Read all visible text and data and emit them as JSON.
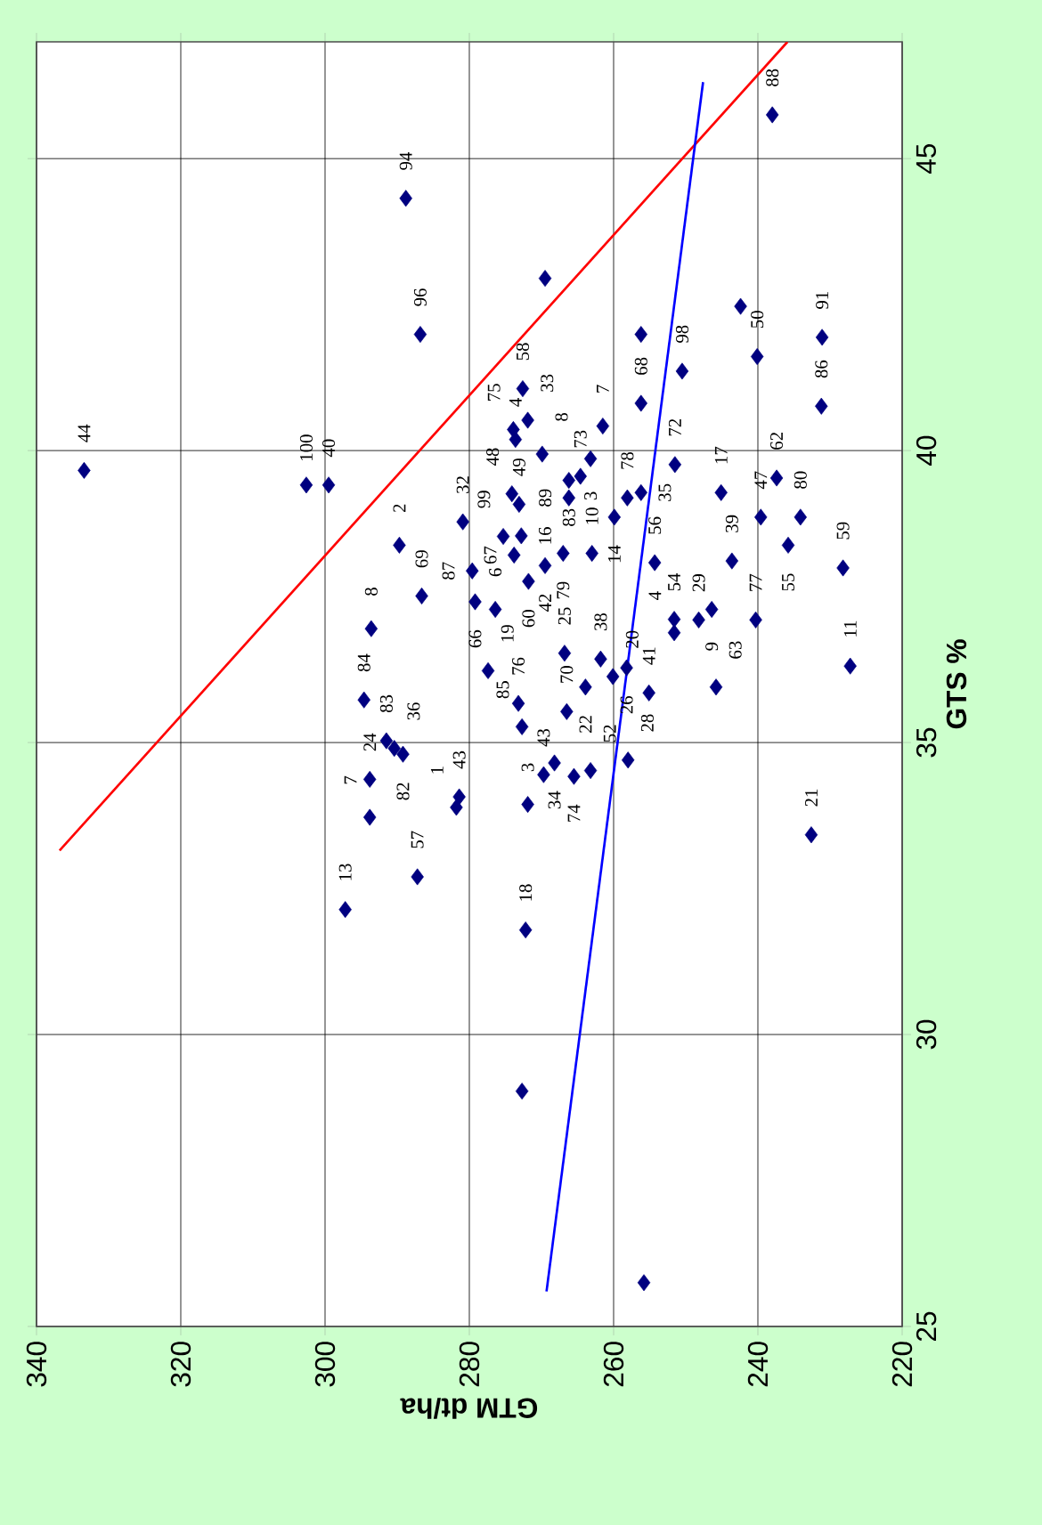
{
  "chart_data": {
    "type": "scatter",
    "xlabel": "GTM dt/ha",
    "ylabel": "GTS %",
    "xlim": [
      340,
      220
    ],
    "xticks": [
      340,
      320,
      300,
      280,
      260,
      240,
      220
    ],
    "ylim": [
      25,
      47
    ],
    "yticks": [
      25,
      30,
      35,
      40,
      45
    ],
    "grid": true,
    "series": [
      {
        "color": "#000080",
        "marker": "diamond",
        "x": [
          333.4,
          288.8,
          238.0,
          269.5,
          286.8,
          231.1,
          242.4,
          240.1,
          250.5,
          256.2,
          256.2,
          231.2,
          272.6,
          271.9,
          273.9,
          273.6,
          269.9,
          261.5,
          263.2,
          264.6,
          266.2,
          266.2,
          274.1,
          273.1,
          275.3,
          272.8,
          273.8,
          271.8,
          269.5,
          267.0,
          263.0,
          254.3,
          243.6,
          235.8,
          228.2,
          259.9,
          258.1,
          256.2,
          251.5,
          245.1,
          237.4,
          239.6,
          234.1,
          280.9,
          289.7,
          279.6,
          279.2,
          276.4,
          286.6,
          293.6,
          294.6,
          291.5,
          290.4,
          289.2,
          293.8,
          293.8,
          281.4,
          281.8,
          287.2,
          297.2,
          272.2,
          272.7,
          255.8,
          232.6,
          277.4,
          273.2,
          272.7,
          266.8,
          266.5,
          263.9,
          261.8,
          260.1,
          258.2,
          255.1,
          251.6,
          251.6,
          248.2,
          246.4,
          240.3,
          245.8,
          227.2,
          269.7,
          268.2,
          265.5,
          263.2,
          258.0,
          271.9,
          302.6,
          299.5
        ],
        "values": [
          39.66,
          44.32,
          45.75,
          42.95,
          41.99,
          41.94,
          42.47,
          41.61,
          41.36,
          41.99,
          40.81,
          40.76,
          41.06,
          40.52,
          40.36,
          40.19,
          39.94,
          40.42,
          39.86,
          39.56,
          39.49,
          39.19,
          39.26,
          39.08,
          38.53,
          38.54,
          38.21,
          37.76,
          38.03,
          38.24,
          38.24,
          38.08,
          38.11,
          38.38,
          37.99,
          38.86,
          39.19,
          39.28,
          39.76,
          39.28,
          39.53,
          38.86,
          38.86,
          38.78,
          38.38,
          37.94,
          37.41,
          37.28,
          37.51,
          36.95,
          35.73,
          35.03,
          34.9,
          34.8,
          34.37,
          33.72,
          34.07,
          33.89,
          32.7,
          32.14,
          31.79,
          29.03,
          25.75,
          33.42,
          36.23,
          35.67,
          35.27,
          36.53,
          35.53,
          35.95,
          36.43,
          36.13,
          36.28,
          35.85,
          37.11,
          36.88,
          37.1,
          37.28,
          37.1,
          35.95,
          36.31,
          34.45,
          34.65,
          34.42,
          34.52,
          34.7,
          33.94,
          39.41,
          39.41
        ]
      },
      {
        "type": "line",
        "color": "#ff0000",
        "marker": "none",
        "x": [
          336.8,
          235.9
        ],
        "values": [
          33.15,
          47
        ]
      },
      {
        "type": "line",
        "color": "#0000ff",
        "marker": "none",
        "x": [
          269.3,
          247.6
        ],
        "values": [
          25.6,
          46.31
        ]
      }
    ],
    "annotations": [
      {
        "text": "44",
        "x": 333.4,
        "y": 39.66
      },
      {
        "text": "94",
        "x": 288.8,
        "y": 44.32
      },
      {
        "text": "88",
        "x": 238.0,
        "y": 45.75
      },
      {
        "text": "96",
        "x": 286.8,
        "y": 41.99
      },
      {
        "text": "91",
        "x": 231.1,
        "y": 41.94
      },
      {
        "text": "50",
        "x": 240.1,
        "y": 41.61
      },
      {
        "text": "98",
        "x": 250.5,
        "y": 41.36
      },
      {
        "text": "68",
        "x": 256.2,
        "y": 40.81
      },
      {
        "text": "86",
        "x": 231.2,
        "y": 40.76
      },
      {
        "text": "58",
        "x": 272.6,
        "y": 41.06
      },
      {
        "text": "33",
        "x": 271.9,
        "y": 40.52
      },
      {
        "text": "75",
        "x": 273.9,
        "y": 40.36
      },
      {
        "text": "4",
        "x": 273.6,
        "y": 40.19
      },
      {
        "text": "8",
        "x": 269.9,
        "y": 39.94
      },
      {
        "text": "7",
        "x": 261.5,
        "y": 40.42
      },
      {
        "text": "3",
        "x": 263.2,
        "y": 39.86
      },
      {
        "text": "73",
        "x": 264.6,
        "y": 39.56
      },
      {
        "text": "83",
        "x": 266.2,
        "y": 39.49
      },
      {
        "text": "89",
        "x": 266.2,
        "y": 39.19
      },
      {
        "text": "48",
        "x": 274.1,
        "y": 39.26
      },
      {
        "text": "49",
        "x": 273.1,
        "y": 39.08
      },
      {
        "text": "99",
        "x": 275.3,
        "y": 38.53
      },
      {
        "text": "16",
        "x": 272.8,
        "y": 38.54
      },
      {
        "text": "67",
        "x": 273.8,
        "y": 38.21
      },
      {
        "text": "60",
        "x": 271.8,
        "y": 37.76
      },
      {
        "text": "42",
        "x": 269.5,
        "y": 38.03
      },
      {
        "text": "79",
        "x": 267.0,
        "y": 38.24
      },
      {
        "text": "10",
        "x": 263.0,
        "y": 38.24
      },
      {
        "text": "56",
        "x": 254.3,
        "y": 38.08
      },
      {
        "text": "39",
        "x": 243.6,
        "y": 38.11
      },
      {
        "text": "55",
        "x": 235.8,
        "y": 38.38
      },
      {
        "text": "59",
        "x": 228.2,
        "y": 37.99
      },
      {
        "text": "14",
        "x": 259.9,
        "y": 38.86
      },
      {
        "text": "78",
        "x": 258.1,
        "y": 39.19
      },
      {
        "text": "35",
        "x": 256.2,
        "y": 39.28
      },
      {
        "text": "72",
        "x": 251.5,
        "y": 39.76
      },
      {
        "text": "17",
        "x": 245.1,
        "y": 39.28
      },
      {
        "text": "62",
        "x": 237.4,
        "y": 39.53
      },
      {
        "text": "47",
        "x": 239.6,
        "y": 38.86
      },
      {
        "text": "80",
        "x": 234.1,
        "y": 38.86
      },
      {
        "text": "32",
        "x": 280.9,
        "y": 38.78
      },
      {
        "text": "2",
        "x": 289.7,
        "y": 38.38
      },
      {
        "text": "87",
        "x": 279.6,
        "y": 37.94
      },
      {
        "text": "66",
        "x": 279.2,
        "y": 37.41
      },
      {
        "text": "6",
        "x": 276.4,
        "y": 37.28
      },
      {
        "text": "69",
        "x": 286.6,
        "y": 37.51
      },
      {
        "text": "8",
        "x": 293.6,
        "y": 36.95
      },
      {
        "text": "84",
        "x": 294.6,
        "y": 35.73
      },
      {
        "text": "83",
        "x": 291.5,
        "y": 35.03
      },
      {
        "text": "36",
        "x": 290.4,
        "y": 34.9
      },
      {
        "text": "82",
        "x": 289.2,
        "y": 34.8
      },
      {
        "text": "24",
        "x": 293.8,
        "y": 34.37
      },
      {
        "text": "7",
        "x": 293.8,
        "y": 33.72
      },
      {
        "text": "43",
        "x": 281.4,
        "y": 34.07
      },
      {
        "text": "1",
        "x": 281.8,
        "y": 33.89
      },
      {
        "text": "57",
        "x": 287.2,
        "y": 32.7
      },
      {
        "text": "13",
        "x": 297.2,
        "y": 32.14
      },
      {
        "text": "18",
        "x": 272.2,
        "y": 31.79
      },
      {
        "text": "21",
        "x": 232.6,
        "y": 33.42
      },
      {
        "text": "19",
        "x": 277.4,
        "y": 36.23
      },
      {
        "text": "76",
        "x": 273.2,
        "y": 35.67
      },
      {
        "text": "85",
        "x": 272.7,
        "y": 35.27
      },
      {
        "text": "25",
        "x": 266.8,
        "y": 36.53
      },
      {
        "text": "70",
        "x": 266.5,
        "y": 35.53
      },
      {
        "text": "22",
        "x": 263.9,
        "y": 35.95
      },
      {
        "text": "38",
        "x": 261.8,
        "y": 36.43
      },
      {
        "text": "20",
        "x": 260.1,
        "y": 36.13
      },
      {
        "text": "26",
        "x": 258.2,
        "y": 36.28
      },
      {
        "text": "41",
        "x": 255.1,
        "y": 35.85
      },
      {
        "text": "54",
        "x": 251.6,
        "y": 37.11
      },
      {
        "text": "4",
        "x": 251.6,
        "y": 36.88
      },
      {
        "text": "29",
        "x": 248.2,
        "y": 37.1
      },
      {
        "text": "9",
        "x": 246.4,
        "y": 37.28
      },
      {
        "text": "77",
        "x": 240.3,
        "y": 37.1
      },
      {
        "text": "63",
        "x": 245.8,
        "y": 35.95
      },
      {
        "text": "11",
        "x": 227.2,
        "y": 36.31
      },
      {
        "text": "43",
        "x": 269.7,
        "y": 34.45
      },
      {
        "text": "34",
        "x": 268.2,
        "y": 34.65
      },
      {
        "text": "74",
        "x": 265.5,
        "y": 34.42
      },
      {
        "text": "52",
        "x": 263.2,
        "y": 34.52
      },
      {
        "text": "28",
        "x": 258.0,
        "y": 34.7
      },
      {
        "text": "3",
        "x": 271.9,
        "y": 33.94
      },
      {
        "text": "100",
        "x": 302.6,
        "y": 39.41
      },
      {
        "text": "40",
        "x": 299.5,
        "y": 39.41
      }
    ]
  }
}
